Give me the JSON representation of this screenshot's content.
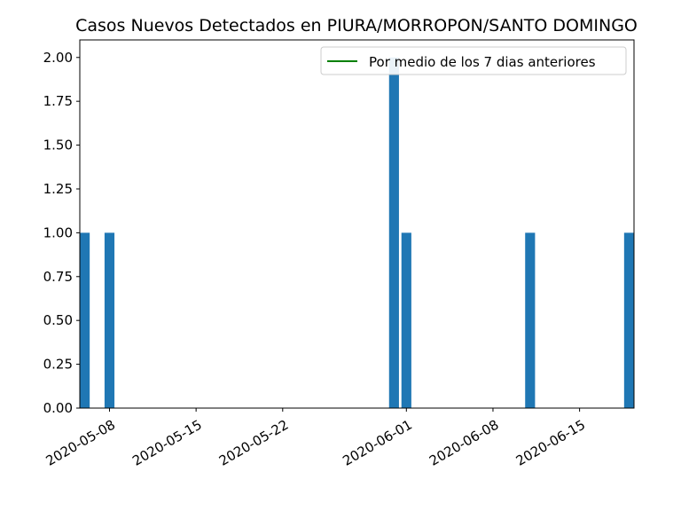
{
  "chart_data": {
    "type": "bar",
    "title": "Casos Nuevos Detectados en PIURA/MORROPON/SANTO DOMINGO",
    "xlabel": "",
    "ylabel": "",
    "x": [
      "2020-05-06",
      "2020-05-08",
      "2020-05-31",
      "2020-06-01",
      "2020-06-11",
      "2020-06-19"
    ],
    "values": [
      1,
      1,
      2,
      1,
      1,
      1
    ],
    "xlim": [
      "2020-05-06",
      "2020-06-19"
    ],
    "ylim": [
      0,
      2.1
    ],
    "x_ticks": [
      "2020-05-08",
      "2020-05-15",
      "2020-05-22",
      "2020-06-01",
      "2020-06-08",
      "2020-06-15"
    ],
    "y_ticks": [
      "0.00",
      "0.25",
      "0.50",
      "0.75",
      "1.00",
      "1.25",
      "1.50",
      "1.75",
      "2.00"
    ],
    "bar_color": "#1f77b4",
    "legend": {
      "position": "upper right",
      "entries": [
        {
          "label": "Por medio de los 7 dias anteriores",
          "color": "#008000",
          "style": "line"
        }
      ]
    },
    "grid": false
  }
}
